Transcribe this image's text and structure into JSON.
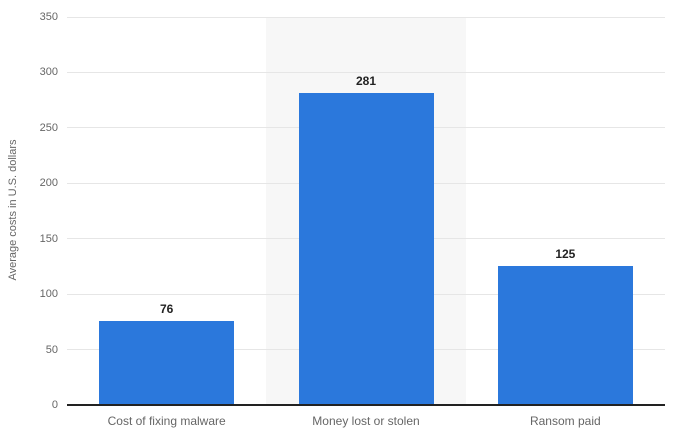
{
  "chart_data": {
    "type": "bar",
    "title": "",
    "xlabel": "",
    "ylabel": "Average costs in U.S. dollars",
    "categories": [
      "Cost of fixing malware",
      "Money lost or stolen",
      "Ransom paid"
    ],
    "values": [
      76,
      281,
      125
    ],
    "value_labels": [
      "76",
      "281",
      "125"
    ],
    "ylim": [
      0,
      350
    ],
    "ytick_interval": 50,
    "yticks": [
      0,
      50,
      100,
      150,
      200,
      250,
      300,
      350
    ],
    "grid": true,
    "legend": "none",
    "highlighted_category_index": 1,
    "colors": {
      "bar": "#2b78dc",
      "gridline": "#e6e6e6",
      "highlight_band": "#f7f7f7",
      "axis_line": "#222222",
      "tick_text": "#666666",
      "value_text": "#222222",
      "category_text": "#666666",
      "background": "#ffffff"
    }
  }
}
